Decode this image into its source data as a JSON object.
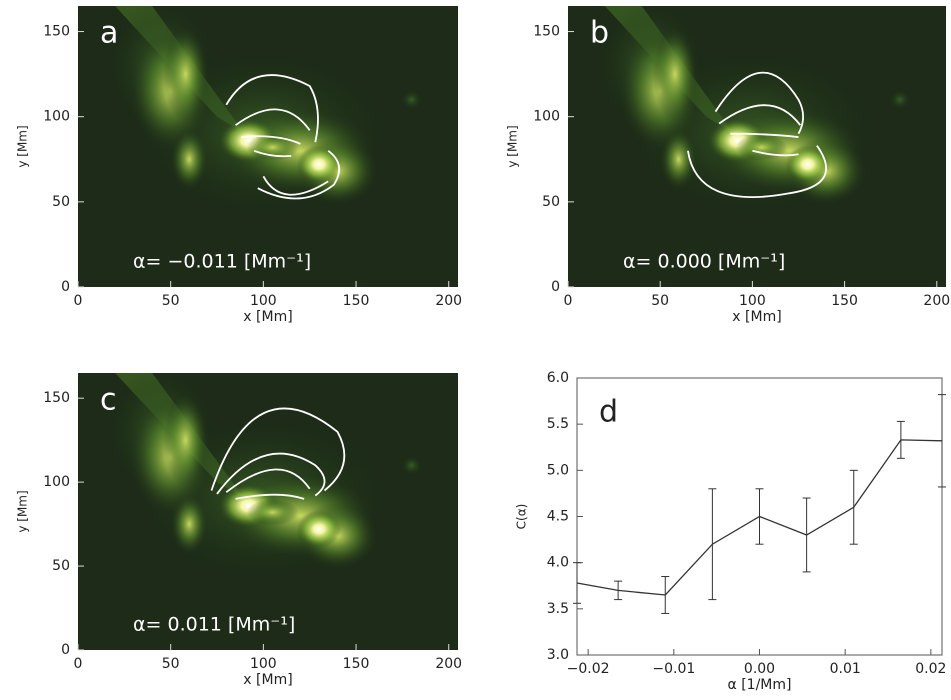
{
  "chart_data": [
    {
      "type": "image",
      "label": "a",
      "annotation": "α=  −0.011 [Mm⁻¹]",
      "xlabel": "x [Mm]",
      "ylabel": "y [Mm]",
      "xlim": [
        0,
        205
      ],
      "ylim": [
        0,
        165
      ],
      "xticks": [
        0,
        50,
        100,
        150,
        200
      ],
      "yticks": [
        0,
        50,
        100,
        150
      ]
    },
    {
      "type": "image",
      "label": "b",
      "annotation": "α=  0.000 [Mm⁻¹]",
      "xlabel": "x [Mm]",
      "ylabel": "y [Mm]",
      "xlim": [
        0,
        205
      ],
      "ylim": [
        0,
        165
      ],
      "xticks": [
        0,
        50,
        100,
        150,
        200
      ],
      "yticks": [
        0,
        50,
        100,
        150
      ]
    },
    {
      "type": "image",
      "label": "c",
      "annotation": "α=  0.011 [Mm⁻¹]",
      "xlabel": "x [Mm]",
      "ylabel": "y [Mm]",
      "xlim": [
        0,
        205
      ],
      "ylim": [
        0,
        165
      ],
      "xticks": [
        0,
        50,
        100,
        150,
        200
      ],
      "yticks": [
        0,
        50,
        100,
        150
      ]
    },
    {
      "type": "line",
      "label": "d",
      "xlabel": "α [1/Mm]",
      "ylabel": "C(α)",
      "color": "#333333",
      "x": [
        -0.0213,
        -0.0165,
        -0.011,
        -0.0055,
        0,
        0.0055,
        0.011,
        0.0165,
        0.0213
      ],
      "values": [
        3.78,
        3.7,
        3.65,
        4.2,
        4.5,
        4.3,
        4.6,
        5.33,
        5.32
      ],
      "errors": [
        0.22,
        0.1,
        0.2,
        0.6,
        0.3,
        0.4,
        0.4,
        0.2,
        0.5
      ],
      "xlim": [
        -0.0213,
        0.0213
      ],
      "ylim": [
        3,
        6
      ],
      "xticks": [
        {
          "value": -0.02,
          "label": "−0.02"
        },
        {
          "value": -0.01,
          "label": "−0.01"
        },
        {
          "value": 0,
          "label": "0.00"
        },
        0.01,
        0.02
      ],
      "yticks": [
        {
          "value": 3,
          "label": "3.0"
        },
        3.5,
        {
          "value": 4,
          "label": "4.0"
        },
        4.5,
        {
          "value": 5,
          "label": "5.0"
        },
        5.5,
        {
          "value": 6,
          "label": "6.0"
        }
      ]
    }
  ]
}
